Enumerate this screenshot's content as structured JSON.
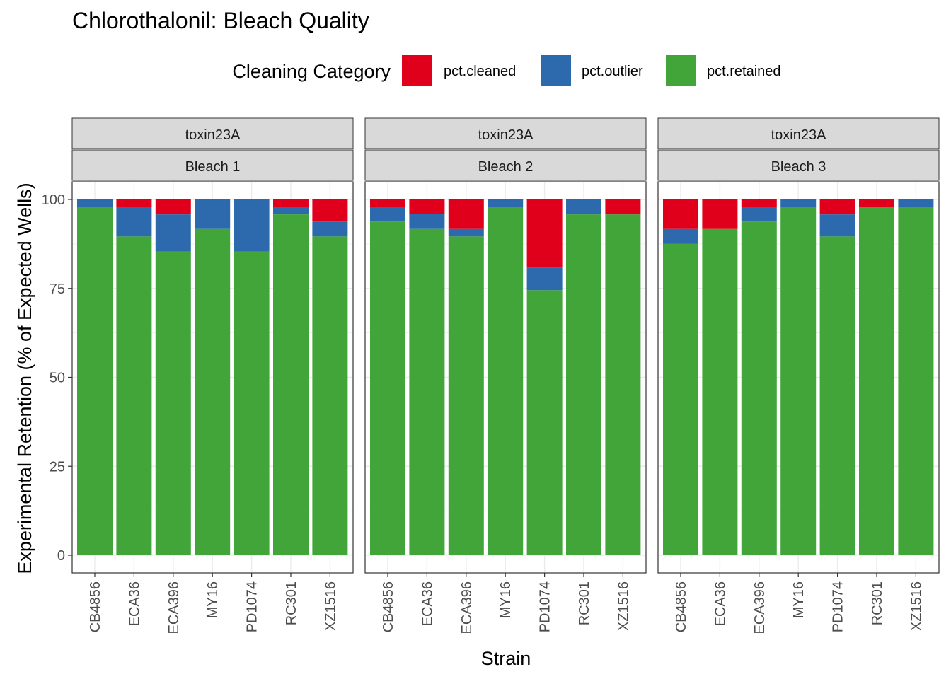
{
  "chart_data": {
    "type": "bar",
    "stacked": true,
    "title": "Chlorothalonil: Bleach Quality",
    "xlabel": "Strain",
    "ylabel": "Experimental Retention (% of Expected Wells)",
    "ylim": [
      0,
      100
    ],
    "yticks": [
      0,
      25,
      50,
      75,
      100
    ],
    "grid": true,
    "legend": {
      "title": "Cleaning Category",
      "position": "top",
      "entries": [
        {
          "key": "cleaned",
          "label": "pct.cleaned",
          "color": "#E0001B"
        },
        {
          "key": "outlier",
          "label": "pct.outlier",
          "color": "#2D6AAD"
        },
        {
          "key": "retained",
          "label": "pct.retained",
          "color": "#42A53A"
        }
      ]
    },
    "categories": [
      "CB4856",
      "ECA36",
      "ECA396",
      "MY16",
      "PD1074",
      "RC301",
      "XZ1516"
    ],
    "panels": [
      {
        "strip_top": "toxin23A",
        "strip_bottom": "Bleach 1",
        "series": [
          {
            "name": "pct.retained",
            "values": [
              97.9,
              89.6,
              85.4,
              91.7,
              85.4,
              95.8,
              89.6
            ]
          },
          {
            "name": "pct.outlier",
            "values": [
              2.1,
              8.3,
              10.4,
              8.3,
              14.6,
              2.1,
              4.2
            ]
          },
          {
            "name": "pct.cleaned",
            "values": [
              0,
              2.1,
              4.2,
              0,
              0,
              2.1,
              6.2
            ]
          }
        ]
      },
      {
        "strip_top": "toxin23A",
        "strip_bottom": "Bleach 2",
        "series": [
          {
            "name": "pct.retained",
            "values": [
              93.8,
              91.7,
              89.6,
              97.9,
              74.5,
              95.8,
              95.8
            ]
          },
          {
            "name": "pct.outlier",
            "values": [
              4.1,
              4.2,
              2.1,
              2.1,
              6.4,
              4.2,
              0
            ]
          },
          {
            "name": "pct.cleaned",
            "values": [
              2.1,
              4.1,
              8.3,
              0,
              19.1,
              0,
              4.2
            ]
          }
        ]
      },
      {
        "strip_top": "toxin23A",
        "strip_bottom": "Bleach 3",
        "series": [
          {
            "name": "pct.retained",
            "values": [
              87.5,
              91.7,
              93.8,
              97.9,
              89.6,
              97.9,
              97.9
            ]
          },
          {
            "name": "pct.outlier",
            "values": [
              4.2,
              0,
              4.1,
              2.1,
              6.2,
              0,
              2.1
            ]
          },
          {
            "name": "pct.cleaned",
            "values": [
              8.3,
              8.3,
              2.1,
              0,
              4.2,
              2.1,
              0
            ]
          }
        ]
      }
    ]
  }
}
